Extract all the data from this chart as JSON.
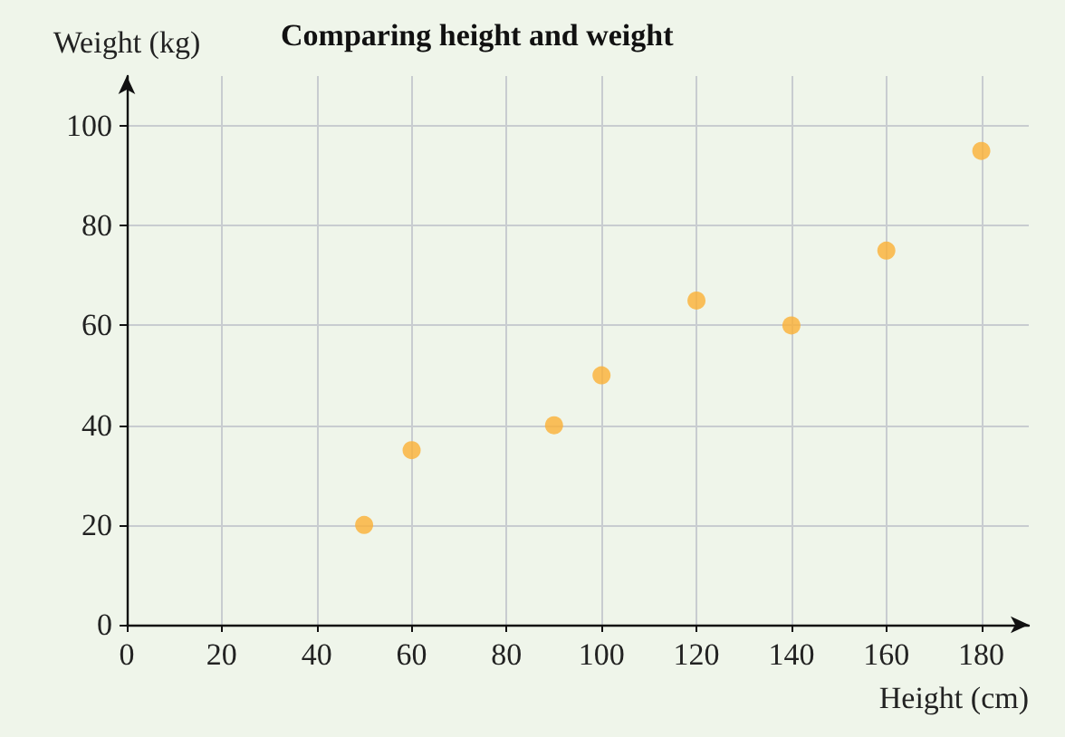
{
  "chart_data": {
    "type": "scatter",
    "title": "Comparing height and weight",
    "xlabel": "Height (cm)",
    "ylabel": "Weight (kg)",
    "x": [
      50,
      60,
      90,
      100,
      120,
      140,
      160,
      180
    ],
    "values": [
      20,
      35,
      40,
      50,
      65,
      60,
      75,
      95
    ],
    "color": "#fbb034",
    "xlim": [
      0,
      190
    ],
    "ylim": [
      0,
      110
    ],
    "xticks": [
      0,
      20,
      40,
      60,
      80,
      100,
      120,
      140,
      160,
      180
    ],
    "yticks": [
      0,
      20,
      40,
      60,
      80,
      100
    ],
    "grid": true,
    "marker": "circle"
  }
}
